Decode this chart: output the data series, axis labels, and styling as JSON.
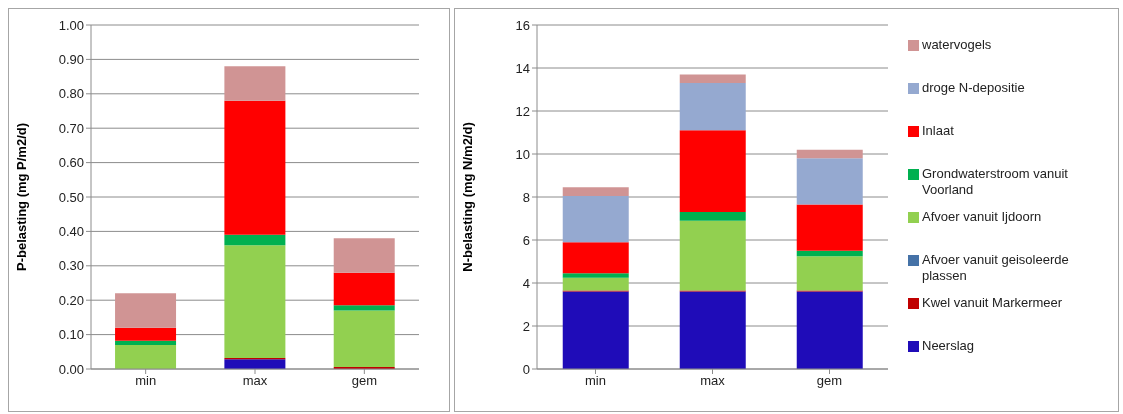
{
  "chart_data": [
    {
      "type": "bar",
      "stacked": true,
      "ylabel": "P-belasting (mg P/m2/d)",
      "categories": [
        "min",
        "max",
        "gem"
      ],
      "ylim": [
        0,
        1
      ],
      "yticks": [
        {
          "value": 0,
          "label": "0.00"
        },
        {
          "value": 0.1,
          "label": "0.10"
        },
        {
          "value": 0.2,
          "label": "0.20"
        },
        {
          "value": 0.3,
          "label": "0.30"
        },
        {
          "value": 0.4,
          "label": "0.40"
        },
        {
          "value": 0.5,
          "label": "0.50"
        },
        {
          "value": 0.6,
          "label": "0.60"
        },
        {
          "value": 0.7,
          "label": "0.70"
        },
        {
          "value": 0.8,
          "label": "0.80"
        },
        {
          "value": 0.9,
          "label": "0.90"
        },
        {
          "value": 1,
          "label": "1.00"
        }
      ],
      "grid": "y",
      "legend": false,
      "series": [
        {
          "color": "#1f0cb8",
          "values": [
            0,
            0.028,
            0
          ]
        },
        {
          "color": "#c00000",
          "values": [
            0,
            0.004,
            0.006
          ]
        },
        {
          "color": "#4572a7",
          "values": [
            0,
            0,
            0
          ]
        },
        {
          "color": "#92d050",
          "values": [
            0.07,
            0.328,
            0.164
          ]
        },
        {
          "color": "#00b050",
          "values": [
            0.012,
            0.03,
            0.015
          ]
        },
        {
          "color": "#ff0000",
          "values": [
            0.038,
            0.39,
            0.095
          ]
        },
        {
          "color": "#95a9d0",
          "values": [
            0,
            0,
            0
          ]
        },
        {
          "color": "#d09494",
          "values": [
            0.1,
            0.1,
            0.1
          ]
        }
      ]
    },
    {
      "type": "bar",
      "stacked": true,
      "ylabel": "N-belasting (mg N/m2/d)",
      "categories": [
        "min",
        "max",
        "gem"
      ],
      "ylim": [
        0,
        16
      ],
      "yticks": [
        0,
        2,
        4,
        6,
        8,
        10,
        12,
        14,
        16
      ],
      "grid": "y",
      "legend": "right",
      "series": [
        {
          "name": "Neerslag",
          "color": "#1f0cb8",
          "values": [
            3.6,
            3.6,
            3.6
          ]
        },
        {
          "name": "Kwel vanuit Markermeer",
          "color": "#c00000",
          "values": [
            0.05,
            0.05,
            0.05
          ]
        },
        {
          "name": "Afvoer vanuit geisoleerde plassen",
          "color": "#4572a7",
          "values": [
            0,
            0,
            0
          ]
        },
        {
          "name": "Afvoer vanuit Ijdoorn",
          "color": "#92d050",
          "values": [
            0.6,
            3.25,
            1.6
          ]
        },
        {
          "name": "Grondwaterstroom vanuit Voorland",
          "color": "#00b050",
          "values": [
            0.2,
            0.4,
            0.25
          ]
        },
        {
          "name": "Inlaat",
          "color": "#ff0000",
          "values": [
            1.45,
            3.8,
            2.15
          ]
        },
        {
          "name": "droge N-depositie",
          "color": "#95a9d0",
          "values": [
            2.15,
            2.2,
            2.15
          ]
        },
        {
          "name": "watervogels",
          "color": "#d09494",
          "values": [
            0.4,
            0.4,
            0.4
          ]
        }
      ]
    }
  ]
}
